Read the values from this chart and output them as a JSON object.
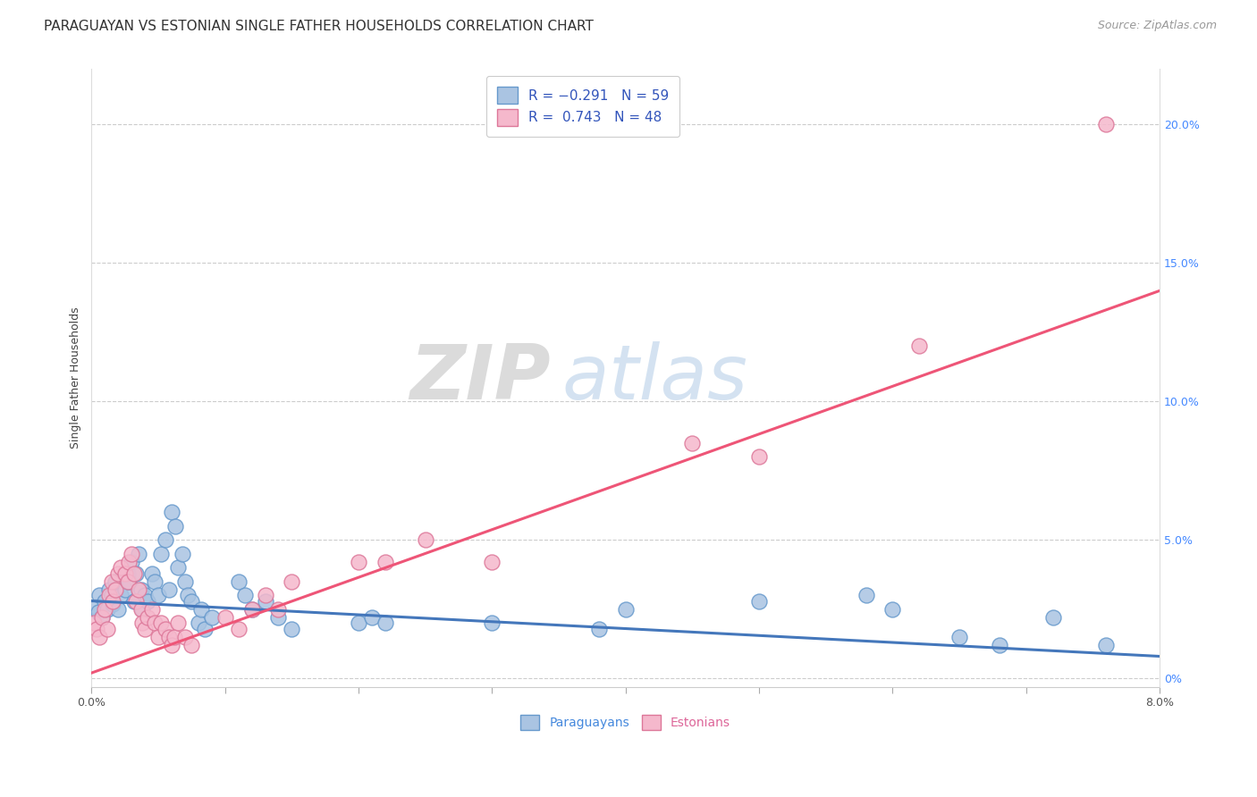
{
  "title": "PARAGUAYAN VS ESTONIAN SINGLE FATHER HOUSEHOLDS CORRELATION CHART",
  "source": "Source: ZipAtlas.com",
  "ylabel": "Single Father Households",
  "right_ytick_vals": [
    0,
    0.05,
    0.1,
    0.15,
    0.2
  ],
  "right_ytick_labels": [
    "0%",
    "5.0%",
    "10.0%",
    "15.0%",
    "20.0%"
  ],
  "paraguayan_color": "#aac4e2",
  "paraguayan_edge": "#6699cc",
  "estonian_color": "#f5b8cc",
  "estonian_edge": "#dd7799",
  "paraguayan_line_color": "#4477bb",
  "estonian_line_color": "#ee5577",
  "paraguayan_trend_x": [
    0.0,
    0.08
  ],
  "paraguayan_trend_y": [
    0.028,
    0.008
  ],
  "estonian_trend_x": [
    0.0,
    0.08
  ],
  "estonian_trend_y": [
    0.002,
    0.14
  ],
  "xlim": [
    0.0,
    0.08
  ],
  "ylim": [
    -0.003,
    0.22
  ],
  "paraguayan_scatter": [
    [
      0.0003,
      0.026
    ],
    [
      0.0005,
      0.024
    ],
    [
      0.0006,
      0.03
    ],
    [
      0.0008,
      0.022
    ],
    [
      0.001,
      0.028
    ],
    [
      0.0012,
      0.025
    ],
    [
      0.0013,
      0.032
    ],
    [
      0.0015,
      0.03
    ],
    [
      0.0016,
      0.027
    ],
    [
      0.0018,
      0.035
    ],
    [
      0.002,
      0.025
    ],
    [
      0.0022,
      0.03
    ],
    [
      0.0025,
      0.032
    ],
    [
      0.0027,
      0.038
    ],
    [
      0.0028,
      0.035
    ],
    [
      0.003,
      0.042
    ],
    [
      0.0032,
      0.028
    ],
    [
      0.0033,
      0.038
    ],
    [
      0.0035,
      0.045
    ],
    [
      0.0037,
      0.032
    ],
    [
      0.0038,
      0.025
    ],
    [
      0.004,
      0.03
    ],
    [
      0.0042,
      0.028
    ],
    [
      0.0045,
      0.038
    ],
    [
      0.0047,
      0.035
    ],
    [
      0.005,
      0.03
    ],
    [
      0.0052,
      0.045
    ],
    [
      0.0055,
      0.05
    ],
    [
      0.0058,
      0.032
    ],
    [
      0.006,
      0.06
    ],
    [
      0.0063,
      0.055
    ],
    [
      0.0065,
      0.04
    ],
    [
      0.0068,
      0.045
    ],
    [
      0.007,
      0.035
    ],
    [
      0.0072,
      0.03
    ],
    [
      0.0075,
      0.028
    ],
    [
      0.008,
      0.02
    ],
    [
      0.0082,
      0.025
    ],
    [
      0.0085,
      0.018
    ],
    [
      0.009,
      0.022
    ],
    [
      0.011,
      0.035
    ],
    [
      0.0115,
      0.03
    ],
    [
      0.012,
      0.025
    ],
    [
      0.013,
      0.028
    ],
    [
      0.014,
      0.022
    ],
    [
      0.015,
      0.018
    ],
    [
      0.02,
      0.02
    ],
    [
      0.021,
      0.022
    ],
    [
      0.022,
      0.02
    ],
    [
      0.03,
      0.02
    ],
    [
      0.038,
      0.018
    ],
    [
      0.04,
      0.025
    ],
    [
      0.05,
      0.028
    ],
    [
      0.058,
      0.03
    ],
    [
      0.06,
      0.025
    ],
    [
      0.065,
      0.015
    ],
    [
      0.068,
      0.012
    ],
    [
      0.072,
      0.022
    ],
    [
      0.076,
      0.012
    ]
  ],
  "estonian_scatter": [
    [
      0.0002,
      0.02
    ],
    [
      0.0004,
      0.018
    ],
    [
      0.0006,
      0.015
    ],
    [
      0.0008,
      0.022
    ],
    [
      0.001,
      0.025
    ],
    [
      0.0012,
      0.018
    ],
    [
      0.0013,
      0.03
    ],
    [
      0.0015,
      0.035
    ],
    [
      0.0016,
      0.028
    ],
    [
      0.0018,
      0.032
    ],
    [
      0.002,
      0.038
    ],
    [
      0.0022,
      0.04
    ],
    [
      0.0025,
      0.038
    ],
    [
      0.0027,
      0.035
    ],
    [
      0.0028,
      0.042
    ],
    [
      0.003,
      0.045
    ],
    [
      0.0032,
      0.038
    ],
    [
      0.0033,
      0.028
    ],
    [
      0.0035,
      0.032
    ],
    [
      0.0037,
      0.025
    ],
    [
      0.0038,
      0.02
    ],
    [
      0.004,
      0.018
    ],
    [
      0.0042,
      0.022
    ],
    [
      0.0045,
      0.025
    ],
    [
      0.0047,
      0.02
    ],
    [
      0.005,
      0.015
    ],
    [
      0.0052,
      0.02
    ],
    [
      0.0055,
      0.018
    ],
    [
      0.0058,
      0.015
    ],
    [
      0.006,
      0.012
    ],
    [
      0.0062,
      0.015
    ],
    [
      0.0065,
      0.02
    ],
    [
      0.007,
      0.015
    ],
    [
      0.0075,
      0.012
    ],
    [
      0.01,
      0.022
    ],
    [
      0.011,
      0.018
    ],
    [
      0.012,
      0.025
    ],
    [
      0.013,
      0.03
    ],
    [
      0.014,
      0.025
    ],
    [
      0.015,
      0.035
    ],
    [
      0.02,
      0.042
    ],
    [
      0.022,
      0.042
    ],
    [
      0.025,
      0.05
    ],
    [
      0.03,
      0.042
    ],
    [
      0.045,
      0.085
    ],
    [
      0.05,
      0.08
    ],
    [
      0.062,
      0.12
    ],
    [
      0.076,
      0.2
    ]
  ],
  "title_fontsize": 11,
  "source_fontsize": 9,
  "axis_label_fontsize": 9,
  "tick_fontsize": 9,
  "legend_fontsize": 11
}
